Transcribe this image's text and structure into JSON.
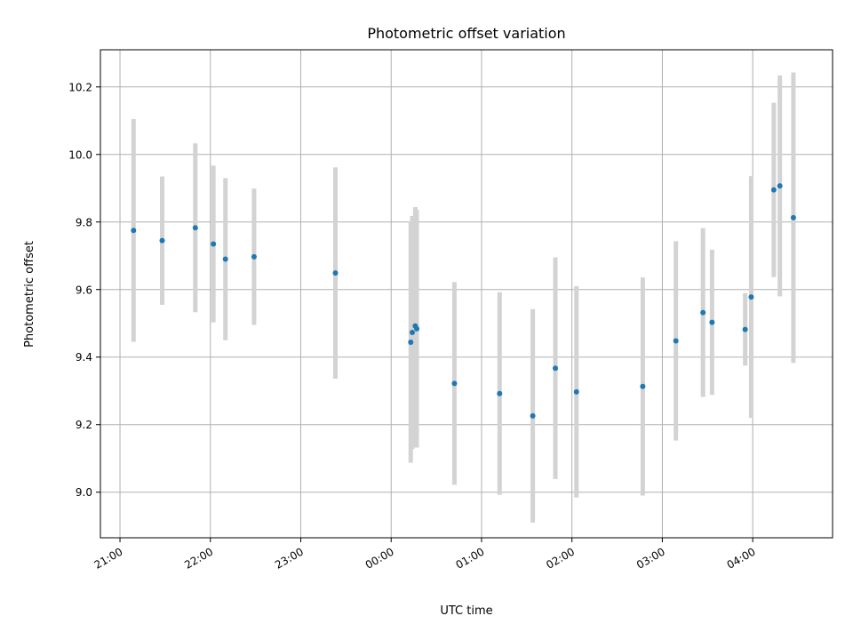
{
  "chart_data": {
    "type": "scatter",
    "title": "Photometric offset variation",
    "xlabel": "UTC time",
    "ylabel": "Photometric offset",
    "xlim": [
      "20:47",
      "04:53"
    ],
    "ylim": [
      8.865,
      10.31
    ],
    "grid": true,
    "x_ticks": [
      "21:00",
      "22:00",
      "23:00",
      "00:00",
      "01:00",
      "02:00",
      "03:00",
      "04:00"
    ],
    "y_ticks": [
      "9.0",
      "9.2",
      "9.4",
      "9.6",
      "9.8",
      "10.0",
      "10.2"
    ],
    "marker_color": "#1f77b4",
    "errorbar_color": "#d3d3d3",
    "points": [
      {
        "t": "21:09",
        "y": 9.775,
        "err": 0.33
      },
      {
        "t": "21:28",
        "y": 9.745,
        "err": 0.19
      },
      {
        "t": "21:50",
        "y": 9.783,
        "err": 0.25
      },
      {
        "t": "22:02",
        "y": 9.735,
        "err": 0.232
      },
      {
        "t": "22:10",
        "y": 9.69,
        "err": 0.24
      },
      {
        "t": "22:29",
        "y": 9.697,
        "err": 0.202
      },
      {
        "t": "23:23",
        "y": 9.649,
        "err": 0.313
      },
      {
        "t": "00:13",
        "y": 9.444,
        "err": 0.357
      },
      {
        "t": "00:14",
        "y": 9.473,
        "err": 0.345
      },
      {
        "t": "00:16",
        "y": 9.492,
        "err": 0.352
      },
      {
        "t": "00:17",
        "y": 9.484,
        "err": 0.352
      },
      {
        "t": "00:42",
        "y": 9.322,
        "err": 0.3
      },
      {
        "t": "01:12",
        "y": 9.292,
        "err": 0.3
      },
      {
        "t": "01:34",
        "y": 9.226,
        "err": 0.316
      },
      {
        "t": "01:49",
        "y": 9.367,
        "err": 0.328
      },
      {
        "t": "02:03",
        "y": 9.297,
        "err": 0.313
      },
      {
        "t": "02:47",
        "y": 9.313,
        "err": 0.323
      },
      {
        "t": "03:09",
        "y": 9.448,
        "err": 0.295
      },
      {
        "t": "03:27",
        "y": 9.532,
        "err": 0.25
      },
      {
        "t": "03:33",
        "y": 9.503,
        "err": 0.215
      },
      {
        "t": "03:55",
        "y": 9.482,
        "err": 0.107
      },
      {
        "t": "03:59",
        "y": 9.578,
        "err": 0.358
      },
      {
        "t": "04:14",
        "y": 9.895,
        "err": 0.258
      },
      {
        "t": "04:18",
        "y": 9.907,
        "err": 0.327
      },
      {
        "t": "04:27",
        "y": 9.813,
        "err": 0.43
      }
    ]
  }
}
